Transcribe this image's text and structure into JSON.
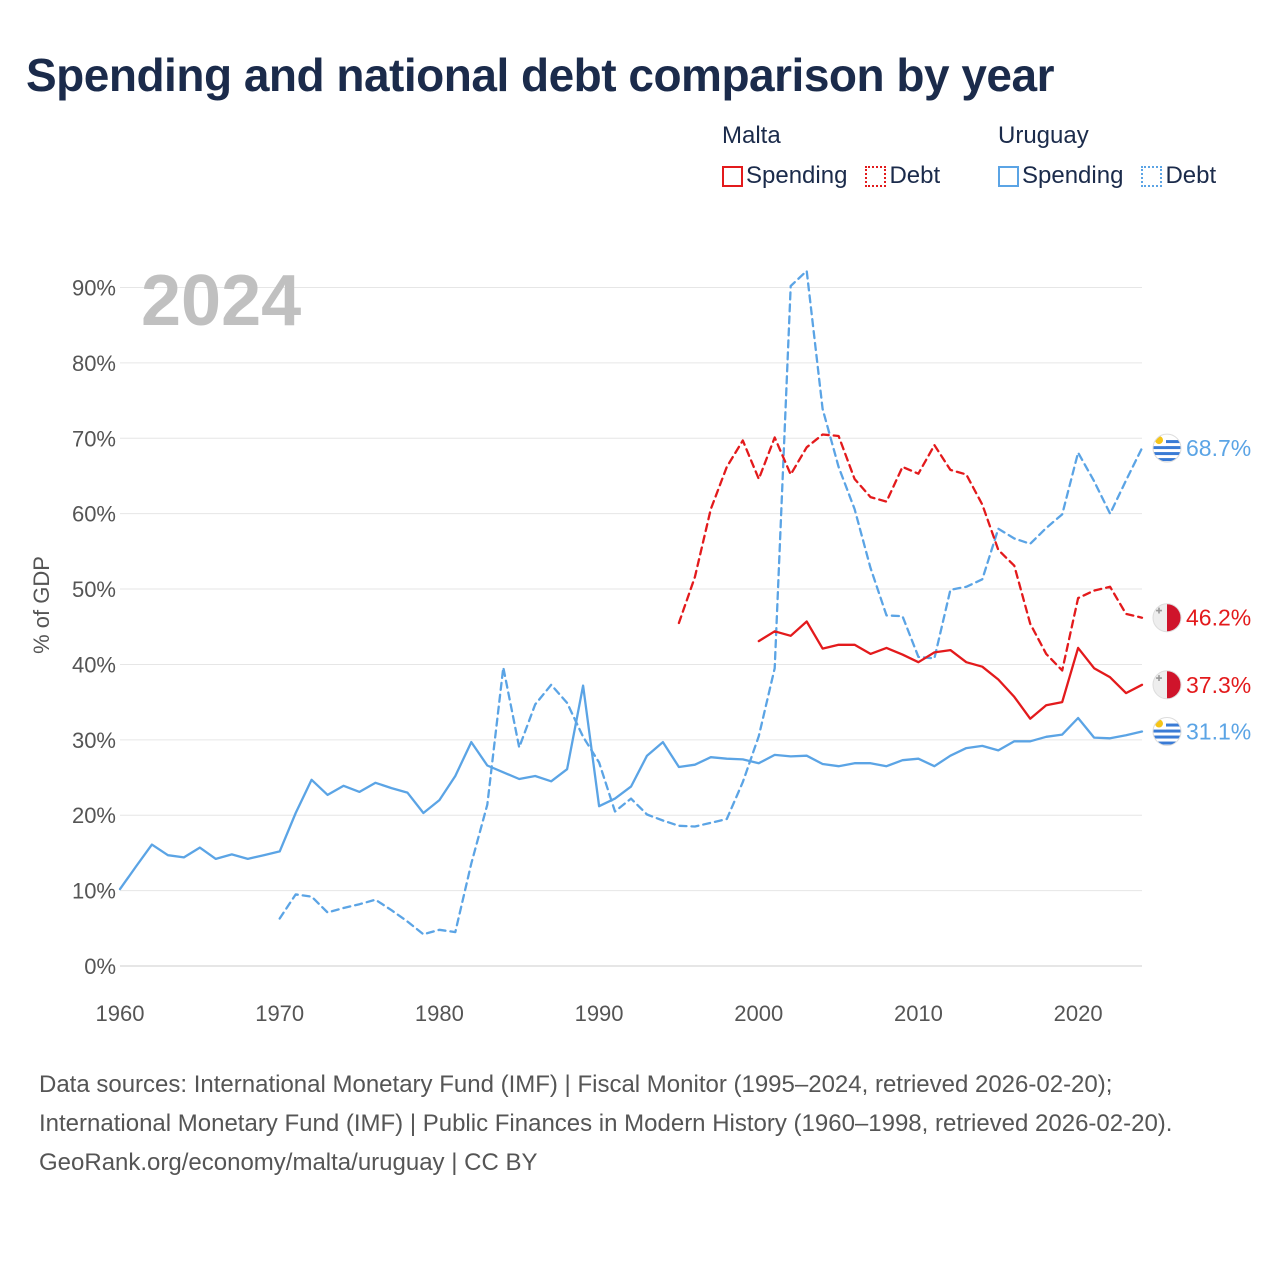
{
  "title": "Spending and national debt comparison by year",
  "legend": {
    "groups": [
      {
        "country": "Malta",
        "color": "#e31a1c",
        "spending_label": "Spending",
        "debt_label": "Debt"
      },
      {
        "country": "Uruguay",
        "color": "#5ba4e5",
        "spending_label": "Spending",
        "debt_label": "Debt"
      }
    ]
  },
  "footer": {
    "sources": "Data sources: International Monetary Fund (IMF) | Fiscal Monitor (1995–2024, retrieved 2026-02-20); International Monetary Fund (IMF) | Public Finances in Modern History (1960–1998, retrieved 2026-02-20).",
    "credit": "GeoRank.org/economy/malta/uruguay | CC BY"
  },
  "chart_data": {
    "type": "line",
    "title": "Spending and national debt comparison by year",
    "year_label": "2024",
    "ylabel": "% of GDP",
    "xlabel": "",
    "xlim": [
      1960,
      2024
    ],
    "ylim": [
      0,
      90
    ],
    "x_ticks": [
      1960,
      1970,
      1980,
      1990,
      2000,
      2010,
      2020
    ],
    "y_ticks": [
      {
        "value": 0,
        "label": "0%"
      },
      {
        "value": 10,
        "label": "10%"
      },
      {
        "value": 20,
        "label": "20%"
      },
      {
        "value": 30,
        "label": "30%"
      },
      {
        "value": 40,
        "label": "40%"
      },
      {
        "value": 50,
        "label": "50%"
      },
      {
        "value": 60,
        "label": "60%"
      },
      {
        "value": 70,
        "label": "70%"
      },
      {
        "value": 80,
        "label": "80%"
      },
      {
        "value": 90,
        "label": "90%"
      }
    ],
    "grid": true,
    "legend_position": "top-right",
    "series": [
      {
        "name": "Uruguay Spending",
        "country": "Uruguay",
        "measure": "Spending",
        "color": "#5ba4e5",
        "dashed": false,
        "flag": "uruguay",
        "end_label": "31.1%",
        "points": [
          [
            1960,
            10.2
          ],
          [
            1961,
            13.2
          ],
          [
            1962,
            16.1
          ],
          [
            1963,
            14.7
          ],
          [
            1964,
            14.4
          ],
          [
            1965,
            15.7
          ],
          [
            1966,
            14.2
          ],
          [
            1967,
            14.8
          ],
          [
            1968,
            14.2
          ],
          [
            1969,
            14.7
          ],
          [
            1970,
            15.2
          ],
          [
            1971,
            20.3
          ],
          [
            1972,
            24.7
          ],
          [
            1973,
            22.7
          ],
          [
            1974,
            23.9
          ],
          [
            1975,
            23.1
          ],
          [
            1976,
            24.3
          ],
          [
            1977,
            23.6
          ],
          [
            1978,
            23.0
          ],
          [
            1979,
            20.3
          ],
          [
            1980,
            22.0
          ],
          [
            1981,
            25.2
          ],
          [
            1982,
            29.7
          ],
          [
            1983,
            26.6
          ],
          [
            1984,
            25.7
          ],
          [
            1985,
            24.8
          ],
          [
            1986,
            25.2
          ],
          [
            1987,
            24.5
          ],
          [
            1988,
            26.1
          ],
          [
            1989,
            37.2
          ],
          [
            1990,
            21.2
          ],
          [
            1991,
            22.2
          ],
          [
            1992,
            23.8
          ],
          [
            1993,
            27.9
          ],
          [
            1994,
            29.7
          ],
          [
            1995,
            26.4
          ],
          [
            1996,
            26.7
          ],
          [
            1997,
            27.7
          ],
          [
            1998,
            27.5
          ],
          [
            1999,
            27.4
          ],
          [
            2000,
            26.9
          ],
          [
            2001,
            28.0
          ],
          [
            2002,
            27.8
          ],
          [
            2003,
            27.9
          ],
          [
            2004,
            26.8
          ],
          [
            2005,
            26.5
          ],
          [
            2006,
            26.9
          ],
          [
            2007,
            26.9
          ],
          [
            2008,
            26.5
          ],
          [
            2009,
            27.3
          ],
          [
            2010,
            27.5
          ],
          [
            2011,
            26.5
          ],
          [
            2012,
            27.9
          ],
          [
            2013,
            28.9
          ],
          [
            2014,
            29.2
          ],
          [
            2015,
            28.6
          ],
          [
            2016,
            29.8
          ],
          [
            2017,
            29.8
          ],
          [
            2018,
            30.4
          ],
          [
            2019,
            30.7
          ],
          [
            2020,
            32.9
          ],
          [
            2021,
            30.3
          ],
          [
            2022,
            30.2
          ],
          [
            2023,
            30.6
          ],
          [
            2024,
            31.1
          ]
        ]
      },
      {
        "name": "Uruguay Debt",
        "country": "Uruguay",
        "measure": "Debt",
        "color": "#5ba4e5",
        "dashed": true,
        "flag": "uruguay",
        "end_label": "68.7%",
        "points": [
          [
            1970,
            6.3
          ],
          [
            1971,
            9.5
          ],
          [
            1972,
            9.2
          ],
          [
            1973,
            7.1
          ],
          [
            1974,
            7.7
          ],
          [
            1975,
            8.2
          ],
          [
            1976,
            8.8
          ],
          [
            1977,
            7.4
          ],
          [
            1978,
            5.9
          ],
          [
            1979,
            4.2
          ],
          [
            1980,
            4.8
          ],
          [
            1981,
            4.5
          ],
          [
            1982,
            13.6
          ],
          [
            1983,
            21.4
          ],
          [
            1984,
            39.6
          ],
          [
            1985,
            29.0
          ],
          [
            1986,
            34.7
          ],
          [
            1987,
            37.3
          ],
          [
            1988,
            34.9
          ],
          [
            1989,
            30.4
          ],
          [
            1990,
            27.0
          ],
          [
            1991,
            20.5
          ],
          [
            1992,
            22.2
          ],
          [
            1993,
            20.1
          ],
          [
            1994,
            19.3
          ],
          [
            1995,
            18.6
          ],
          [
            1996,
            18.5
          ],
          [
            1997,
            19.0
          ],
          [
            1998,
            19.5
          ],
          [
            1999,
            24.4
          ],
          [
            2000,
            30.5
          ],
          [
            2001,
            39.5
          ],
          [
            2002,
            90.2
          ],
          [
            2003,
            92.2
          ],
          [
            2004,
            73.9
          ],
          [
            2005,
            66.2
          ],
          [
            2006,
            60.6
          ],
          [
            2007,
            52.8
          ],
          [
            2008,
            46.5
          ],
          [
            2009,
            46.4
          ],
          [
            2010,
            41.0
          ],
          [
            2011,
            40.8
          ],
          [
            2012,
            49.9
          ],
          [
            2013,
            50.3
          ],
          [
            2014,
            51.3
          ],
          [
            2015,
            58.0
          ],
          [
            2016,
            56.7
          ],
          [
            2017,
            56.0
          ],
          [
            2018,
            58.1
          ],
          [
            2019,
            59.9
          ],
          [
            2020,
            68.1
          ],
          [
            2021,
            64.3
          ],
          [
            2022,
            60.0
          ],
          [
            2023,
            64.4
          ],
          [
            2024,
            68.7
          ]
        ]
      },
      {
        "name": "Malta Spending",
        "country": "Malta",
        "measure": "Spending",
        "color": "#e31a1c",
        "dashed": false,
        "flag": "malta",
        "end_label": "37.3%",
        "points": [
          [
            2000,
            43.1
          ],
          [
            2001,
            44.4
          ],
          [
            2002,
            43.8
          ],
          [
            2003,
            45.7
          ],
          [
            2004,
            42.1
          ],
          [
            2005,
            42.6
          ],
          [
            2006,
            42.6
          ],
          [
            2007,
            41.4
          ],
          [
            2008,
            42.2
          ],
          [
            2009,
            41.3
          ],
          [
            2010,
            40.3
          ],
          [
            2011,
            41.6
          ],
          [
            2012,
            41.9
          ],
          [
            2013,
            40.3
          ],
          [
            2014,
            39.7
          ],
          [
            2015,
            38.0
          ],
          [
            2016,
            35.7
          ],
          [
            2017,
            32.8
          ],
          [
            2018,
            34.6
          ],
          [
            2019,
            35.0
          ],
          [
            2020,
            42.2
          ],
          [
            2021,
            39.5
          ],
          [
            2022,
            38.3
          ],
          [
            2023,
            36.2
          ],
          [
            2024,
            37.3
          ]
        ]
      },
      {
        "name": "Malta Debt",
        "country": "Malta",
        "measure": "Debt",
        "color": "#e31a1c",
        "dashed": true,
        "flag": "malta",
        "end_label": "46.2%",
        "points": [
          [
            1995,
            45.5
          ],
          [
            1996,
            51.6
          ],
          [
            1997,
            60.6
          ],
          [
            1998,
            66.2
          ],
          [
            1999,
            69.7
          ],
          [
            2000,
            64.6
          ],
          [
            2001,
            70.1
          ],
          [
            2002,
            65.2
          ],
          [
            2003,
            68.8
          ],
          [
            2004,
            70.5
          ],
          [
            2005,
            70.3
          ],
          [
            2006,
            64.6
          ],
          [
            2007,
            62.2
          ],
          [
            2008,
            61.6
          ],
          [
            2009,
            66.2
          ],
          [
            2010,
            65.3
          ],
          [
            2011,
            69.1
          ],
          [
            2012,
            65.8
          ],
          [
            2013,
            65.2
          ],
          [
            2014,
            61.2
          ],
          [
            2015,
            55.2
          ],
          [
            2016,
            53.1
          ],
          [
            2017,
            45.4
          ],
          [
            2018,
            41.4
          ],
          [
            2019,
            39.2
          ],
          [
            2020,
            48.8
          ],
          [
            2021,
            49.8
          ],
          [
            2022,
            50.3
          ],
          [
            2023,
            46.7
          ],
          [
            2024,
            46.2
          ]
        ]
      }
    ]
  }
}
